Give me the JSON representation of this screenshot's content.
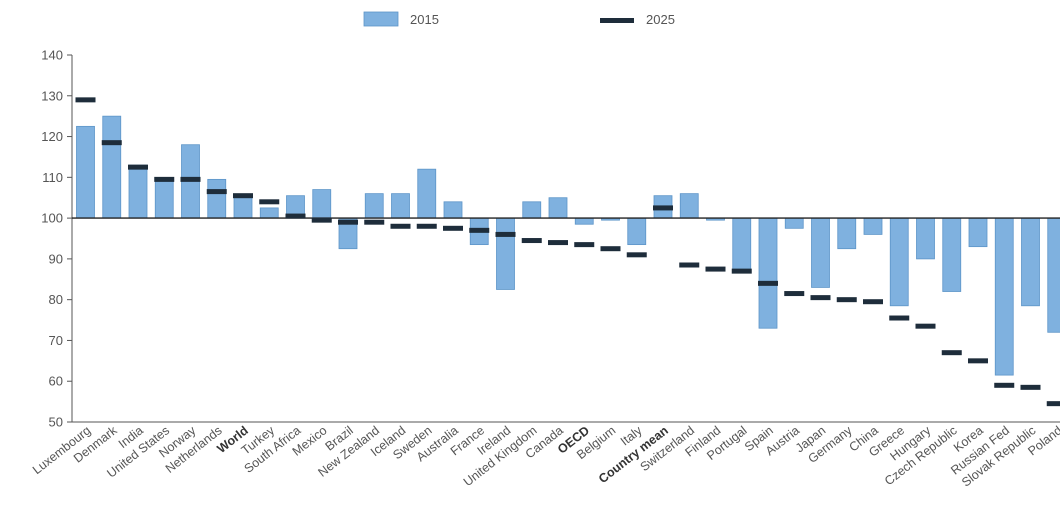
{
  "chart_data": {
    "type": "bar",
    "categories": [
      "Luxembourg",
      "Denmark",
      "India",
      "United States",
      "Norway",
      "Netherlands",
      "World",
      "Turkey",
      "South Africa",
      "Mexico",
      "Brazil",
      "New Zealand",
      "Iceland",
      "Sweden",
      "Australia",
      "France",
      "Ireland",
      "United Kingdom",
      "Canada",
      "OECD",
      "Belgium",
      "Italy",
      "Country mean",
      "Switzerland",
      "Finland",
      "Portugal",
      "Spain",
      "Austria",
      "Japan",
      "Germany",
      "China",
      "Greece",
      "Hungary",
      "Czech Republic",
      "Korea",
      "Russian Fed",
      "Slovak Republic",
      "Poland"
    ],
    "bold_categories": [
      "World",
      "OECD",
      "Country mean"
    ],
    "baseline": 100,
    "ylim": [
      50,
      140
    ],
    "yticks": [
      50,
      60,
      70,
      80,
      90,
      100,
      110,
      120,
      130,
      140
    ],
    "series": [
      {
        "name": "2015",
        "mark": "bar",
        "color": "#7fb1df",
        "values": [
          122.5,
          125,
          113,
          109,
          118,
          109.5,
          105.5,
          102.5,
          105.5,
          107,
          92.5,
          106,
          106,
          112,
          104,
          93.5,
          82.5,
          104,
          105,
          98.5,
          99.5,
          93.5,
          105.5,
          106,
          99.5,
          87,
          73,
          97.5,
          83,
          92.5,
          96,
          78.5,
          90,
          82,
          93,
          61.5,
          78.5,
          72
        ]
      },
      {
        "name": "2025",
        "mark": "dash",
        "color": "#1e2d3b",
        "values": [
          129,
          118.5,
          112.5,
          109.5,
          109.5,
          106.5,
          105.5,
          104,
          100.5,
          99.5,
          99,
          99,
          98,
          98,
          97.5,
          97,
          96,
          94.5,
          94,
          93.5,
          92.5,
          91,
          102.5,
          88.5,
          87.5,
          87,
          84,
          81.5,
          80.5,
          80,
          79.5,
          75.5,
          73.5,
          67,
          65,
          59,
          58.5,
          54.5
        ]
      }
    ],
    "legend": {
      "placement": "top-center",
      "items": [
        "2015",
        "2025"
      ]
    },
    "grid": false,
    "title": "",
    "xlabel": "",
    "ylabel": ""
  }
}
